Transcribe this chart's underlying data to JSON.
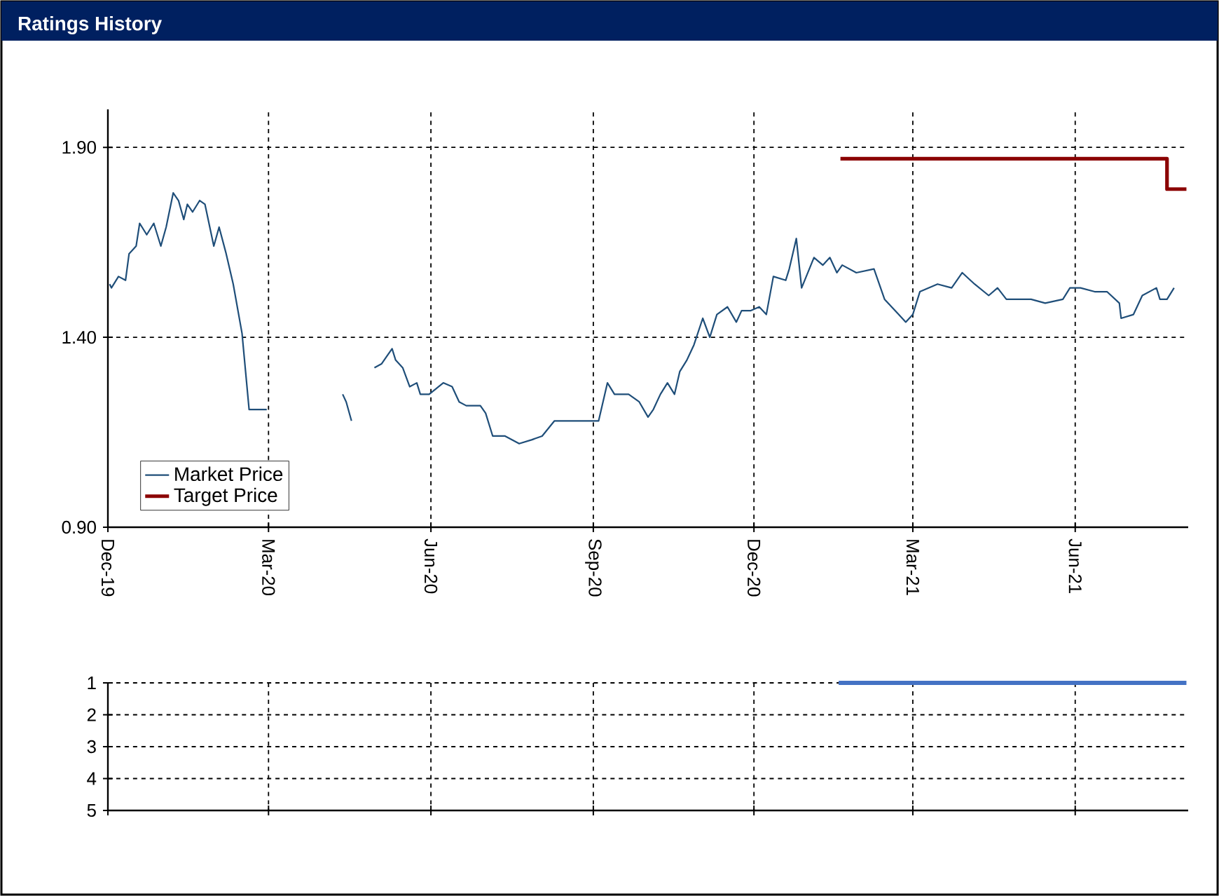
{
  "chart_data": [
    {
      "type": "line",
      "title": "Ratings History",
      "xlim": [
        "2019-12-01",
        "2021-08-04"
      ],
      "xticks": [
        {
          "value": "2019-12-01",
          "label": "Dec-19"
        },
        {
          "value": "2020-03-01",
          "label": "Mar-20"
        },
        {
          "value": "2020-06-01",
          "label": "Jun-20"
        },
        {
          "value": "2020-09-01",
          "label": "Sep-20"
        },
        {
          "value": "2020-12-01",
          "label": "Dec-20"
        },
        {
          "value": "2021-03-01",
          "label": "Mar-21"
        },
        {
          "value": "2021-06-01",
          "label": "Jun-21"
        }
      ],
      "ylim": [
        0.9,
        2.0
      ],
      "yticks": [
        {
          "value": 0.9,
          "label": "0.90"
        },
        {
          "value": 1.4,
          "label": "1.40"
        },
        {
          "value": 1.9,
          "label": "1.90"
        }
      ],
      "grid": true,
      "legend": "bottom left",
      "series": [
        {
          "name": "Market Price",
          "color": "#1f4e79",
          "x": [
            "2019-12-02",
            "2019-12-03",
            "2019-12-07",
            "2019-12-11",
            "2019-12-13",
            "2019-12-17",
            "2019-12-19",
            "2019-12-23",
            "2019-12-27",
            "2019-12-31",
            "2020-01-03",
            "2020-01-07",
            "2020-01-10",
            "2020-01-13",
            "2020-01-15",
            "2020-01-18",
            "2020-01-22",
            "2020-01-25",
            "2020-01-30",
            "2020-02-02",
            "2020-02-06",
            "2020-02-10",
            "2020-02-15",
            "2020-02-17",
            "2020-02-19",
            "2020-02-22",
            "2020-02-29",
            "2020-03-20",
            "2020-04-12",
            "2020-04-14",
            "2020-04-17",
            "2020-04-25",
            "2020-04-30",
            "2020-05-04",
            "2020-05-10",
            "2020-05-12",
            "2020-05-16",
            "2020-05-20",
            "2020-05-24",
            "2020-05-26",
            "2020-05-31",
            "2020-06-08",
            "2020-06-13",
            "2020-06-17",
            "2020-06-21",
            "2020-06-29",
            "2020-07-02",
            "2020-07-06",
            "2020-07-13",
            "2020-07-21",
            "2020-07-28",
            "2020-08-03",
            "2020-08-10",
            "2020-08-21",
            "2020-08-31",
            "2020-09-04",
            "2020-09-09",
            "2020-09-13",
            "2020-09-21",
            "2020-09-27",
            "2020-10-02",
            "2020-10-05",
            "2020-10-09",
            "2020-10-13",
            "2020-10-17",
            "2020-10-20",
            "2020-10-24",
            "2020-10-28",
            "2020-11-02",
            "2020-11-06",
            "2020-11-10",
            "2020-11-16",
            "2020-11-21",
            "2020-11-24",
            "2020-11-29",
            "2020-12-04",
            "2020-12-08",
            "2020-12-12",
            "2020-12-19",
            "2020-12-21",
            "2020-12-25",
            "2020-12-28",
            "2021-01-04",
            "2021-01-09",
            "2021-01-13",
            "2021-01-17",
            "2021-01-20",
            "2021-01-28",
            "2021-02-07",
            "2021-02-13",
            "2021-02-21",
            "2021-02-25",
            "2021-03-01",
            "2021-03-05",
            "2021-03-15",
            "2021-03-23",
            "2021-03-29",
            "2021-04-05",
            "2021-04-13",
            "2021-04-18",
            "2021-04-23",
            "2021-05-07",
            "2021-05-15",
            "2021-05-25",
            "2021-05-29",
            "2021-06-04",
            "2021-06-12",
            "2021-06-19",
            "2021-06-26",
            "2021-06-27",
            "2021-07-04",
            "2021-07-09",
            "2021-07-17",
            "2021-07-19",
            "2021-07-23",
            "2021-07-27"
          ],
          "values": [
            1.54,
            1.53,
            1.56,
            1.55,
            1.62,
            1.64,
            1.7,
            1.67,
            1.7,
            1.64,
            1.69,
            1.78,
            1.76,
            1.71,
            1.75,
            1.73,
            1.76,
            1.75,
            1.64,
            1.69,
            1.62,
            1.54,
            1.41,
            1.31,
            1.21,
            1.21,
            1.21,
            null,
            1.25,
            1.23,
            1.18,
            null,
            1.32,
            1.33,
            1.37,
            1.34,
            1.32,
            1.27,
            1.28,
            1.25,
            1.25,
            1.28,
            1.27,
            1.23,
            1.22,
            1.22,
            1.2,
            1.14,
            1.14,
            1.12,
            1.13,
            1.14,
            1.18,
            1.18,
            1.18,
            1.18,
            1.28,
            1.25,
            1.25,
            1.23,
            1.19,
            1.21,
            1.25,
            1.28,
            1.25,
            1.31,
            1.34,
            1.38,
            1.45,
            1.4,
            1.46,
            1.48,
            1.44,
            1.47,
            1.47,
            1.48,
            1.46,
            1.56,
            1.55,
            1.58,
            1.66,
            1.53,
            1.61,
            1.59,
            1.61,
            1.57,
            1.59,
            1.57,
            1.58,
            1.5,
            1.46,
            1.44,
            1.46,
            1.52,
            1.54,
            1.53,
            1.57,
            1.54,
            1.51,
            1.53,
            1.5,
            1.5,
            1.49,
            1.5,
            1.53,
            1.53,
            1.52,
            1.52,
            1.49,
            1.45,
            1.46,
            1.51,
            1.53,
            1.5,
            1.5,
            1.53
          ]
        },
        {
          "name": "Target Price",
          "type": "step",
          "color": "#8b0000",
          "x": [
            "2021-01-19",
            "2021-07-23",
            "2021-08-03"
          ],
          "values": [
            1.87,
            1.79,
            1.79
          ]
        }
      ]
    },
    {
      "type": "line",
      "xlim": [
        "2019-12-01",
        "2021-08-04"
      ],
      "xticks": [
        {
          "value": "2019-12-01",
          "label": null
        },
        {
          "value": "2020-03-01",
          "label": null
        },
        {
          "value": "2020-06-01",
          "label": null
        },
        {
          "value": "2020-09-01",
          "label": null
        },
        {
          "value": "2020-12-01",
          "label": null
        },
        {
          "value": "2021-03-01",
          "label": null
        },
        {
          "value": "2021-06-01",
          "label": null
        }
      ],
      "ylim": [
        5,
        1
      ],
      "yticks": [
        1,
        2,
        3,
        4,
        5
      ],
      "grid": true,
      "tick_labels": "y",
      "series": [
        {
          "color": "#4472c4",
          "x": [
            "2021-01-18",
            "2021-08-03"
          ],
          "values": [
            1,
            1
          ]
        }
      ]
    }
  ]
}
